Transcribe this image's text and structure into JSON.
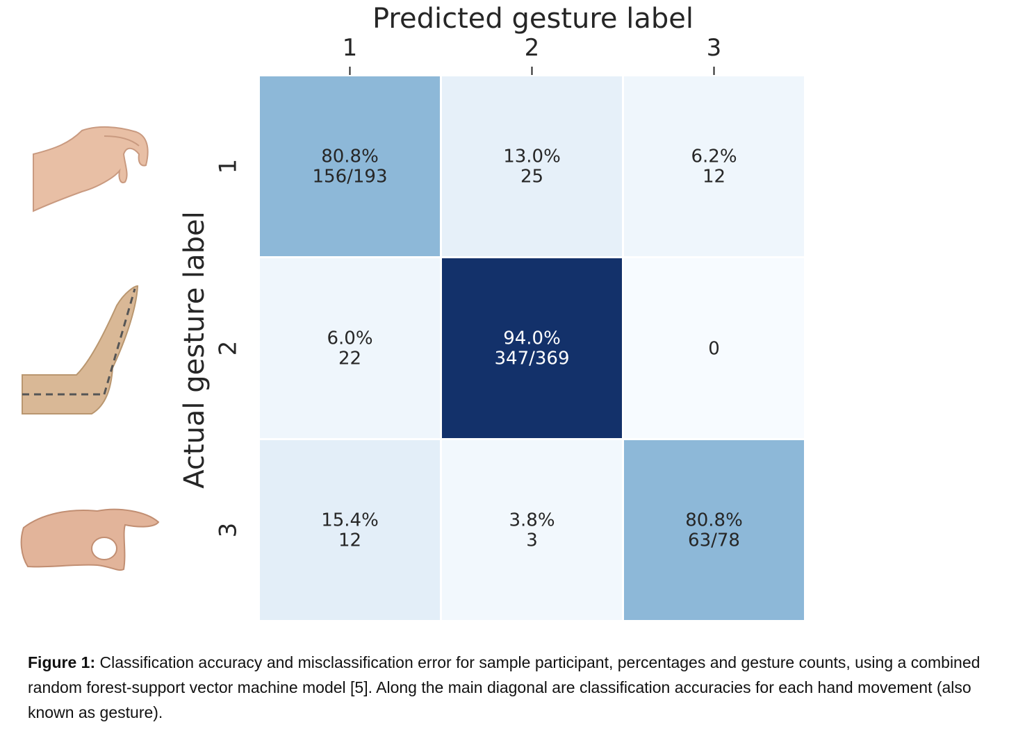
{
  "chart_data": {
    "type": "heatmap",
    "xlabel": "Predicted gesture label",
    "ylabel": "Actual gesture label",
    "x_ticks": [
      "1",
      "2",
      "3"
    ],
    "y_ticks": [
      "1",
      "2",
      "3"
    ],
    "colormap": "Blues",
    "colorbar": false,
    "cells": [
      [
        {
          "value": 80.8,
          "pct": "80.8%",
          "count": "156/193"
        },
        {
          "value": 13.0,
          "pct": "13.0%",
          "count": "25"
        },
        {
          "value": 6.2,
          "pct": "6.2%",
          "count": "12"
        }
      ],
      [
        {
          "value": 6.0,
          "pct": "6.0%",
          "count": "22"
        },
        {
          "value": 94.0,
          "pct": "94.0%",
          "count": "347/369"
        },
        {
          "value": 0,
          "pct": "",
          "count": "0"
        }
      ],
      [
        {
          "value": 15.4,
          "pct": "15.4%",
          "count": "12"
        },
        {
          "value": 3.8,
          "pct": "3.8%",
          "count": "3"
        },
        {
          "value": 80.8,
          "pct": "80.8%",
          "count": "63/78"
        }
      ]
    ],
    "colors": {
      "low": "#f7fbff",
      "mid": "#8db8d8",
      "high": "#13316a",
      "text_dark": "#262626",
      "text_light": "#ffffff"
    }
  },
  "hand_icons": [
    "pinch-gesture-icon",
    "flat-hand-gesture-icon",
    "ok-gesture-icon"
  ],
  "caption": {
    "label": "Figure 1:",
    "text": " Classification accuracy and misclassification error for sample participant, percentages and gesture counts, using a combined random forest-support vector machine model [5]. Along the main diagonal are classification accuracies for each hand movement (also known as gesture)."
  }
}
